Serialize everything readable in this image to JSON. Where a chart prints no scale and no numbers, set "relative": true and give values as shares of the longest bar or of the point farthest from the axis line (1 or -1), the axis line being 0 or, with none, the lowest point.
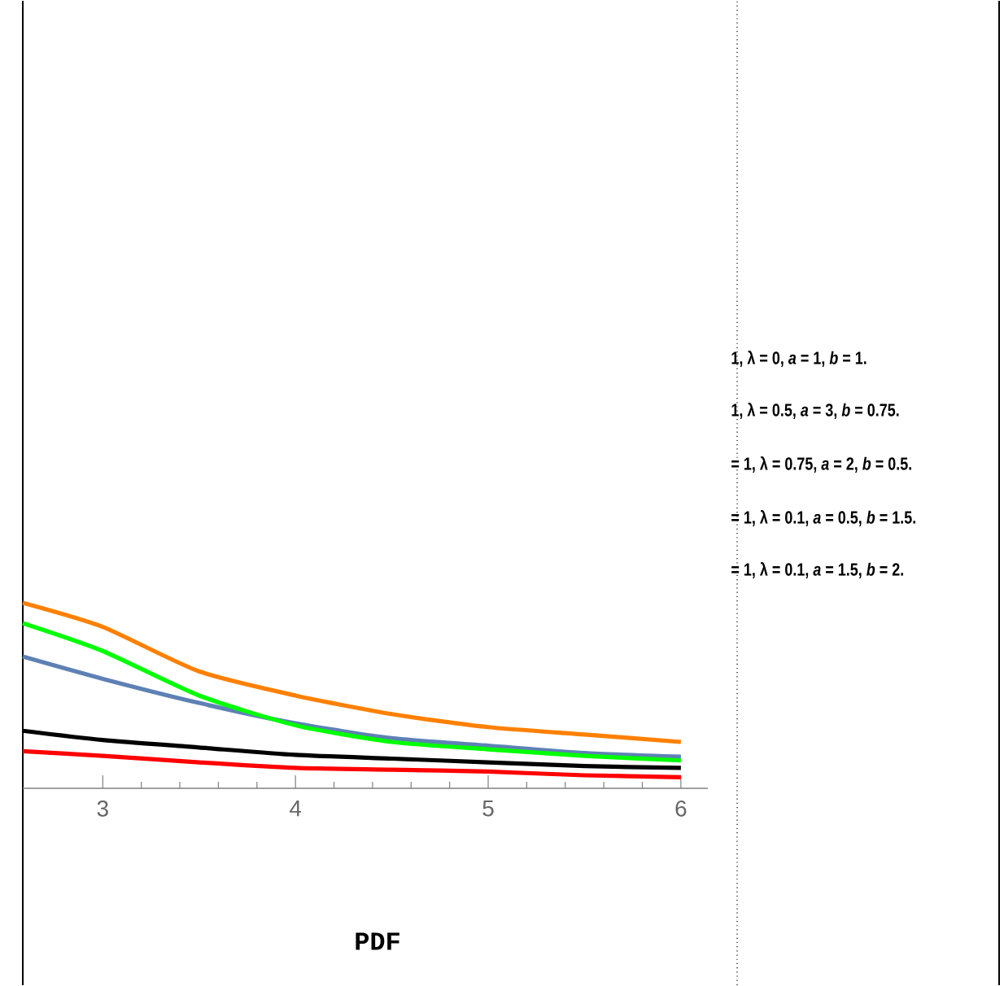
{
  "chart_data": {
    "type": "line",
    "xlabel": "PDF",
    "relative": true,
    "xlim": [
      2.585,
      6.14
    ],
    "xticks": [
      3,
      4,
      5,
      6
    ],
    "x": [
      2.585,
      3,
      3.5,
      4,
      4.5,
      5,
      5.5,
      6
    ],
    "series": [
      {
        "color": "#5e81b5",
        "values": [
          0.71,
          0.59,
          0.46,
          0.35,
          0.27,
          0.23,
          0.19,
          0.17
        ]
      },
      {
        "color": "#ff8000",
        "values": [
          1.0,
          0.87,
          0.63,
          0.5,
          0.4,
          0.33,
          0.29,
          0.25
        ]
      },
      {
        "color": "#00ff00",
        "values": [
          0.89,
          0.74,
          0.5,
          0.34,
          0.25,
          0.21,
          0.175,
          0.15
        ]
      },
      {
        "color": "#000000",
        "values": [
          0.31,
          0.26,
          0.22,
          0.18,
          0.16,
          0.14,
          0.12,
          0.11
        ]
      },
      {
        "color": "#ff0000",
        "values": [
          0.2,
          0.175,
          0.14,
          0.11,
          0.1,
          0.09,
          0.07,
          0.06
        ]
      }
    ],
    "annotations": [
      "1, λ = 0, *a* = 1, *b* = 1.",
      "1, λ = 0.5, *a* = 3, *b* = 0.75.",
      "= 1, λ = 0.75, *a* = 2, *b* = 0.5.",
      "= 1, λ = 0.1, *a* = 0.5, *b* = 1.5.",
      "= 1, λ = 0.1, *a* = 1.5, *b* = 2."
    ]
  }
}
